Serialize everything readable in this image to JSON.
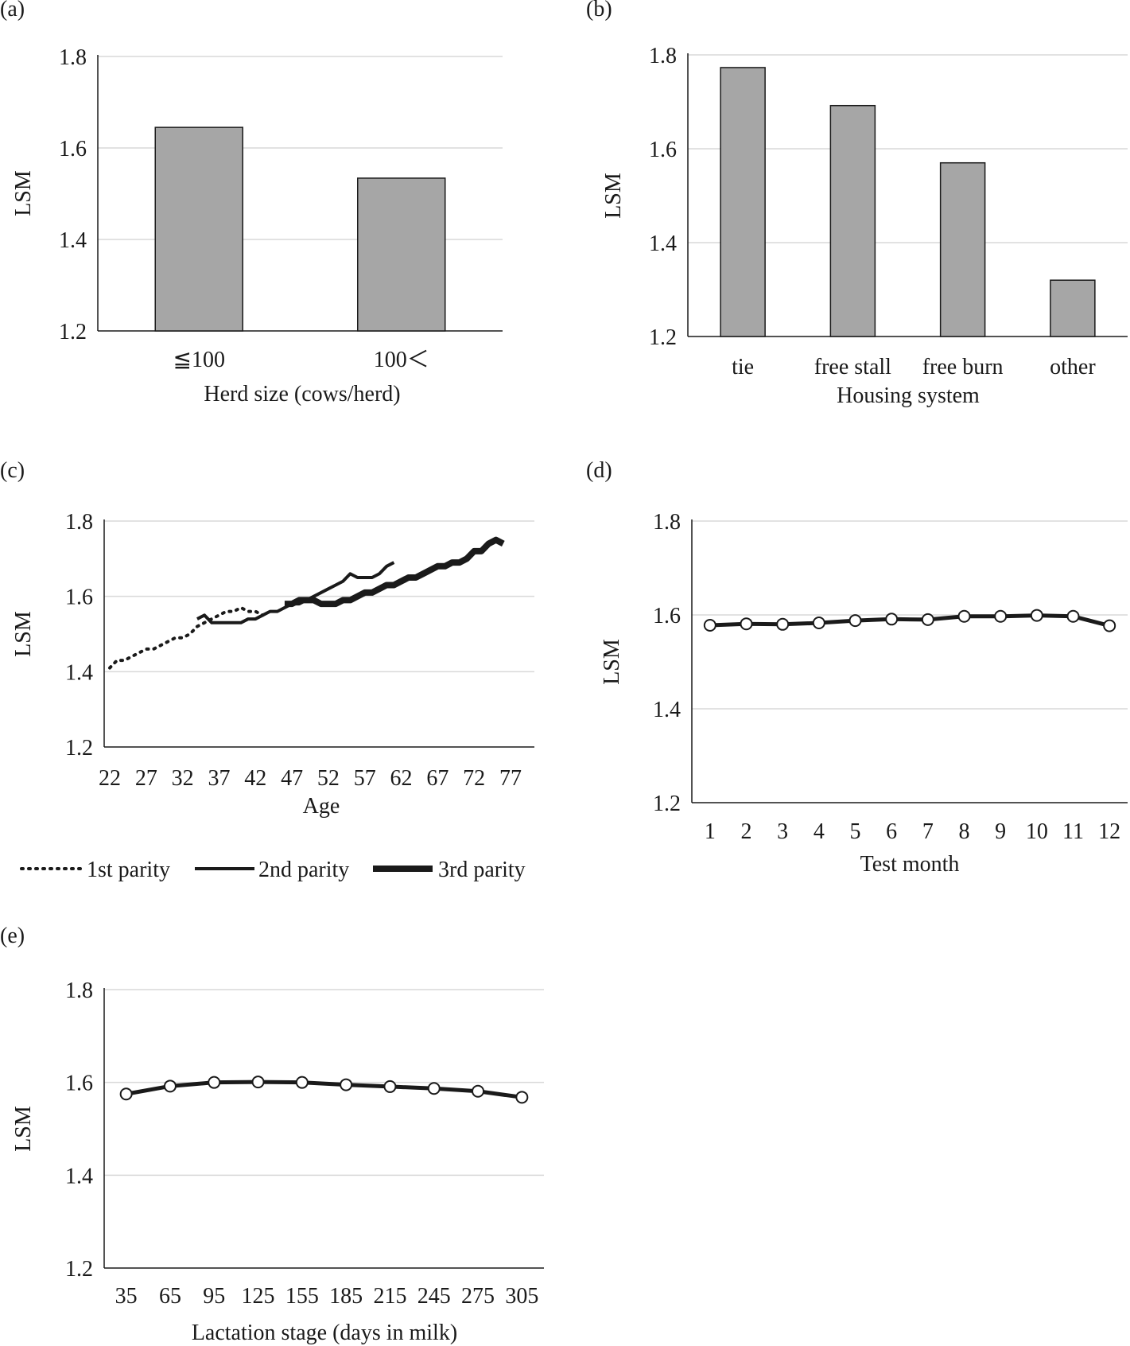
{
  "chart_data": [
    {
      "id": "a",
      "panel": "(a)",
      "type": "bar",
      "ylabel": "LSM",
      "xlabel": "Herd size (cows/herd)",
      "ylim": [
        1.2,
        1.8
      ],
      "yticks": [
        "1.2",
        "1.4",
        "1.6",
        "1.8"
      ],
      "grid": true,
      "categories": [
        "≦100",
        "100＜"
      ],
      "values": [
        1.645,
        1.534
      ]
    },
    {
      "id": "b",
      "panel": "(b)",
      "type": "bar",
      "ylabel": "LSM",
      "xlabel": "Housing system",
      "ylim": [
        1.2,
        1.8
      ],
      "yticks": [
        "1.2",
        "1.4",
        "1.6",
        "1.8"
      ],
      "grid": true,
      "categories": [
        "tie",
        "free stall",
        "free burn",
        "other"
      ],
      "values": [
        1.773,
        1.692,
        1.57,
        1.32
      ]
    },
    {
      "id": "c",
      "panel": "(c)",
      "type": "line",
      "ylabel": "LSM",
      "xlabel": "Age",
      "ylim": [
        1.2,
        1.8
      ],
      "yticks": [
        "1.2",
        "1.4",
        "1.6",
        "1.8"
      ],
      "grid": true,
      "xlim": [
        22,
        77
      ],
      "xticks": [
        "22",
        "27",
        "32",
        "37",
        "42",
        "47",
        "52",
        "57",
        "62",
        "67",
        "72",
        "77"
      ],
      "legend": "bottom",
      "series": [
        {
          "name": "1st parity",
          "style": "dotted",
          "x": [
            22,
            23,
            24,
            25,
            26,
            27,
            28,
            29,
            30,
            31,
            32,
            33,
            34,
            35,
            36,
            37,
            38,
            39,
            40,
            41,
            42,
            43
          ],
          "y": [
            1.41,
            1.43,
            1.43,
            1.44,
            1.45,
            1.46,
            1.46,
            1.47,
            1.48,
            1.49,
            1.49,
            1.5,
            1.52,
            1.53,
            1.54,
            1.55,
            1.56,
            1.56,
            1.57,
            1.56,
            1.56,
            1.55
          ]
        },
        {
          "name": "2nd parity",
          "style": "solid",
          "x": [
            34,
            35,
            36,
            37,
            38,
            39,
            40,
            41,
            42,
            43,
            44,
            45,
            46,
            47,
            48,
            49,
            50,
            51,
            52,
            53,
            54,
            55,
            56,
            57,
            58,
            59,
            60,
            61
          ],
          "y": [
            1.54,
            1.55,
            1.53,
            1.53,
            1.53,
            1.53,
            1.53,
            1.54,
            1.54,
            1.55,
            1.56,
            1.56,
            1.57,
            1.58,
            1.58,
            1.59,
            1.6,
            1.61,
            1.62,
            1.63,
            1.64,
            1.66,
            1.65,
            1.65,
            1.65,
            1.66,
            1.68,
            1.69
          ]
        },
        {
          "name": "3rd parity",
          "style": "thick",
          "x": [
            46,
            47,
            48,
            49,
            50,
            51,
            52,
            53,
            54,
            55,
            56,
            57,
            58,
            59,
            60,
            61,
            62,
            63,
            64,
            65,
            66,
            67,
            68,
            69,
            70,
            71,
            72,
            73,
            74,
            75,
            76
          ],
          "y": [
            1.58,
            1.58,
            1.59,
            1.59,
            1.59,
            1.58,
            1.58,
            1.58,
            1.59,
            1.59,
            1.6,
            1.61,
            1.61,
            1.62,
            1.63,
            1.63,
            1.64,
            1.65,
            1.65,
            1.66,
            1.67,
            1.68,
            1.68,
            1.69,
            1.69,
            1.7,
            1.72,
            1.72,
            1.74,
            1.75,
            1.74
          ]
        }
      ]
    },
    {
      "id": "d",
      "panel": "(d)",
      "type": "line",
      "ylabel": "LSM",
      "xlabel": "Test month",
      "ylim": [
        1.2,
        1.8
      ],
      "yticks": [
        "1.2",
        "1.4",
        "1.6",
        "1.8"
      ],
      "grid": true,
      "categories": [
        "1",
        "2",
        "3",
        "4",
        "5",
        "6",
        "7",
        "8",
        "9",
        "10",
        "11",
        "12"
      ],
      "values": [
        1.578,
        1.581,
        1.58,
        1.583,
        1.588,
        1.591,
        1.59,
        1.597,
        1.597,
        1.599,
        1.597,
        1.577
      ]
    },
    {
      "id": "e",
      "panel": "(e)",
      "type": "line",
      "ylabel": "LSM",
      "xlabel": "Lactation stage (days in milk)",
      "ylim": [
        1.2,
        1.8
      ],
      "yticks": [
        "1.2",
        "1.4",
        "1.6",
        "1.8"
      ],
      "grid": true,
      "categories": [
        "35",
        "65",
        "95",
        "125",
        "155",
        "185",
        "215",
        "245",
        "275",
        "305"
      ],
      "values": [
        1.575,
        1.592,
        1.6,
        1.601,
        1.6,
        1.595,
        1.591,
        1.587,
        1.581,
        1.568
      ]
    }
  ]
}
